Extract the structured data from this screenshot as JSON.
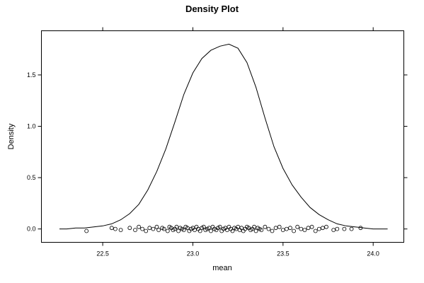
{
  "chart_data": {
    "type": "line",
    "title": "Density Plot",
    "xlabel": "mean",
    "ylabel": "Density",
    "xlim": [
      22.16,
      24.17
    ],
    "ylim": [
      -0.13,
      1.93
    ],
    "x_ticks": [
      22.5,
      23.0,
      23.5,
      24.0
    ],
    "x_tick_labels": [
      "22.5",
      "23.0",
      "23.5",
      "24.0"
    ],
    "y_ticks": [
      0.0,
      0.5,
      1.0,
      1.5
    ],
    "y_tick_labels": [
      "0.0",
      "0.5",
      "1.0",
      "1.5"
    ],
    "grid": false,
    "series": [
      {
        "x": [
          22.26,
          22.3,
          22.35,
          22.4,
          22.45,
          22.5,
          22.55,
          22.6,
          22.65,
          22.7,
          22.75,
          22.8,
          22.85,
          22.9,
          22.95,
          23.0,
          23.05,
          23.1,
          23.15,
          23.2,
          23.25,
          23.3,
          23.35,
          23.4,
          23.45,
          23.5,
          23.55,
          23.6,
          23.65,
          23.7,
          23.75,
          23.8,
          23.85,
          23.9,
          23.95,
          24.0,
          24.05,
          24.08
        ],
        "y": [
          0.0,
          0.0,
          0.01,
          0.01,
          0.02,
          0.03,
          0.05,
          0.09,
          0.15,
          0.24,
          0.38,
          0.56,
          0.78,
          1.04,
          1.31,
          1.52,
          1.66,
          1.74,
          1.78,
          1.8,
          1.76,
          1.62,
          1.38,
          1.08,
          0.8,
          0.59,
          0.43,
          0.31,
          0.21,
          0.14,
          0.09,
          0.05,
          0.03,
          0.02,
          0.01,
          0.0,
          0.0,
          0.0
        ]
      }
    ],
    "rug": {
      "y_center": 0.0,
      "x": [
        22.41,
        22.55,
        22.57,
        22.6,
        22.65,
        22.68,
        22.7,
        22.72,
        22.74,
        22.76,
        22.78,
        22.8,
        22.81,
        22.83,
        22.84,
        22.86,
        22.87,
        22.88,
        22.89,
        22.9,
        22.91,
        22.92,
        22.93,
        22.94,
        22.95,
        22.96,
        22.97,
        22.98,
        22.99,
        23.0,
        23.01,
        23.02,
        23.03,
        23.04,
        23.05,
        23.06,
        23.07,
        23.08,
        23.09,
        23.1,
        23.11,
        23.12,
        23.13,
        23.14,
        23.15,
        23.16,
        23.17,
        23.18,
        23.19,
        23.2,
        23.21,
        23.22,
        23.23,
        23.24,
        23.25,
        23.26,
        23.27,
        23.28,
        23.29,
        23.3,
        23.31,
        23.32,
        23.33,
        23.34,
        23.35,
        23.36,
        23.37,
        23.38,
        23.4,
        23.42,
        23.44,
        23.46,
        23.48,
        23.5,
        23.52,
        23.54,
        23.56,
        23.58,
        23.6,
        23.62,
        23.64,
        23.66,
        23.68,
        23.7,
        23.72,
        23.74,
        23.78,
        23.8,
        23.84,
        23.88,
        23.93
      ],
      "jitter": [
        -0.02,
        0.01,
        0.0,
        -0.01,
        0.01,
        -0.01,
        0.02,
        0.0,
        -0.02,
        0.01,
        0.0,
        0.02,
        -0.01,
        0.01,
        0.0,
        -0.02,
        0.02,
        0.01,
        -0.01,
        0.0,
        0.02,
        -0.02,
        0.01,
        0.0,
        -0.01,
        0.02,
        0.01,
        -0.02,
        0.0,
        0.01,
        -0.01,
        0.02,
        0.0,
        -0.02,
        0.01,
        0.02,
        -0.01,
        0.0,
        0.01,
        -0.02,
        0.02,
        0.0,
        -0.01,
        0.01,
        0.02,
        -0.02,
        0.0,
        0.01,
        -0.01,
        0.02,
        0.0,
        -0.02,
        0.01,
        0.0,
        0.02,
        -0.01,
        0.01,
        -0.02,
        0.0,
        0.02,
        0.01,
        -0.01,
        0.0,
        0.02,
        -0.02,
        0.01,
        0.0,
        -0.01,
        0.02,
        0.0,
        -0.02,
        0.01,
        0.02,
        -0.01,
        0.0,
        0.01,
        -0.02,
        0.02,
        0.0,
        -0.01,
        0.01,
        0.02,
        -0.02,
        0.0,
        0.01,
        0.02,
        -0.01,
        0.0,
        0.0,
        0.0,
        0.01
      ]
    }
  }
}
